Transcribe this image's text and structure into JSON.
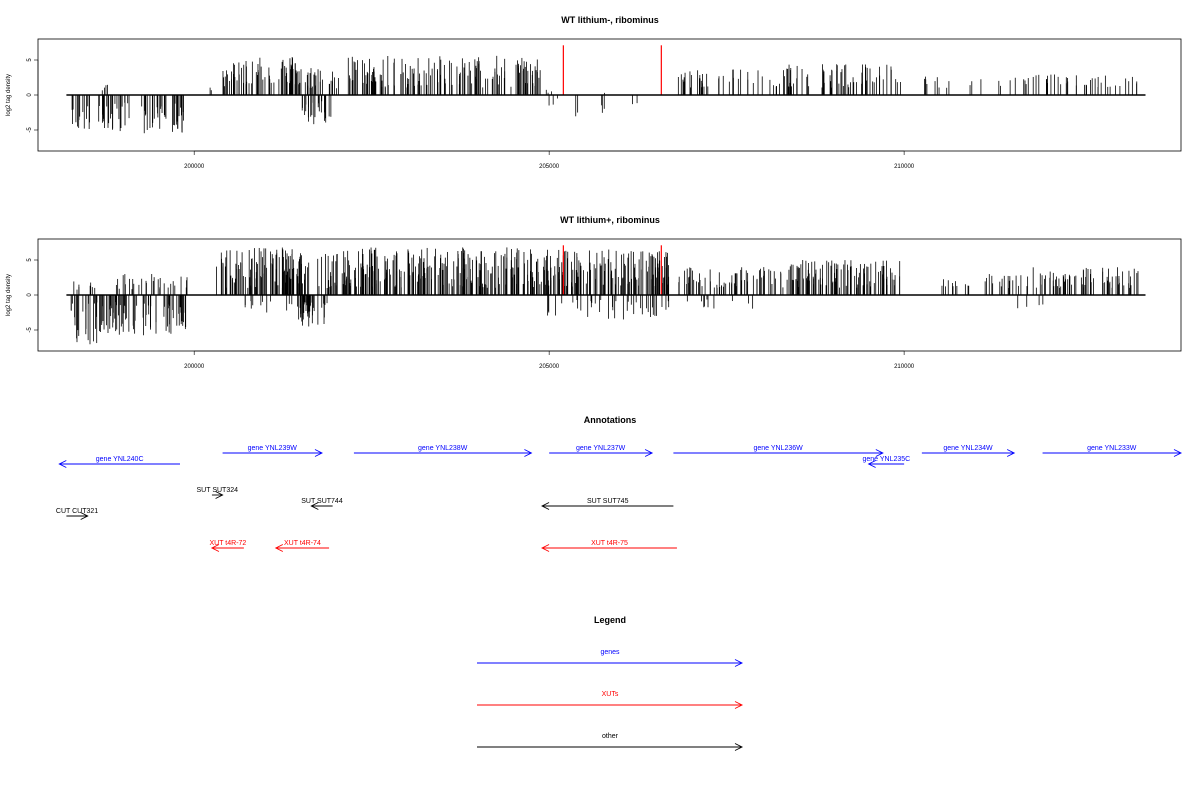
{
  "chart_data": [
    {
      "type": "bar",
      "title": "WT lithium-, ribominus",
      "xlabel": "",
      "ylabel": "log2 tag density",
      "xlim": [
        197800,
        213900
      ],
      "ylim": [
        -8,
        8
      ],
      "xticks": [
        200000,
        205000,
        210000
      ],
      "yticks": [
        -5,
        0,
        5
      ],
      "xticklabels": [
        "200000",
        "205000",
        "210000"
      ],
      "yticklabels": [
        "-5",
        "0",
        "5"
      ],
      "grid": false,
      "baseline_range": [
        198200,
        213400
      ],
      "bar_color": "#000000",
      "marker_color": "#ff0000",
      "markers": [
        205200,
        206580
      ],
      "marker_height": 7.1,
      "segments": [
        {
          "start": 198250,
          "end": 198600,
          "count": 14,
          "min": -5.0,
          "max": -1.0,
          "seed": 11
        },
        {
          "start": 198700,
          "end": 198850,
          "count": 4,
          "min": 0.5,
          "max": 2.0,
          "seed": 12
        },
        {
          "start": 198650,
          "end": 199850,
          "count": 60,
          "min": -5.5,
          "max": -1.0,
          "seed": 13
        },
        {
          "start": 200200,
          "end": 200300,
          "count": 2,
          "min": 0.5,
          "max": 1.5,
          "seed": 14
        },
        {
          "start": 200400,
          "end": 201500,
          "count": 70,
          "min": 1.0,
          "max": 5.5,
          "seed": 15
        },
        {
          "start": 201500,
          "end": 201950,
          "count": 24,
          "min": -4.2,
          "max": -0.8,
          "seed": 16
        },
        {
          "start": 201500,
          "end": 202100,
          "count": 26,
          "min": 0.8,
          "max": 4.5,
          "seed": 17
        },
        {
          "start": 202150,
          "end": 204900,
          "count": 150,
          "min": 1.0,
          "max": 5.6,
          "seed": 18
        },
        {
          "start": 204950,
          "end": 205150,
          "count": 6,
          "min": -1.5,
          "max": 1.2,
          "seed": 19
        },
        {
          "start": 205350,
          "end": 205450,
          "count": 2,
          "min": -3.2,
          "max": -1.5,
          "seed": 20
        },
        {
          "start": 205700,
          "end": 205900,
          "count": 5,
          "min": -3.3,
          "max": 0.8,
          "seed": 21
        },
        {
          "start": 206150,
          "end": 206250,
          "count": 2,
          "min": -1.5,
          "max": -0.8,
          "seed": 22
        },
        {
          "start": 206800,
          "end": 208200,
          "count": 38,
          "min": 1.0,
          "max": 3.8,
          "seed": 23
        },
        {
          "start": 208200,
          "end": 209950,
          "count": 70,
          "min": 1.0,
          "max": 4.5,
          "seed": 24
        },
        {
          "start": 210250,
          "end": 211800,
          "count": 20,
          "min": 1.0,
          "max": 2.8,
          "seed": 25
        },
        {
          "start": 211800,
          "end": 213300,
          "count": 36,
          "min": 1.0,
          "max": 3.5,
          "seed": 26
        }
      ]
    },
    {
      "type": "bar",
      "title": "WT lithium+, ribominus",
      "xlabel": "",
      "ylabel": "log2 tag density",
      "xlim": [
        197800,
        213900
      ],
      "ylim": [
        -8,
        8
      ],
      "xticks": [
        200000,
        205000,
        210000
      ],
      "yticks": [
        -5,
        0,
        5
      ],
      "xticklabels": [
        "200000",
        "205000",
        "210000"
      ],
      "yticklabels": [
        "-5",
        "0",
        "5"
      ],
      "grid": false,
      "baseline_range": [
        198200,
        213400
      ],
      "bar_color": "#000000",
      "marker_color": "#ff0000",
      "markers": [
        205200,
        206580
      ],
      "marker_height": 7.1,
      "segments": [
        {
          "start": 198250,
          "end": 198650,
          "count": 22,
          "min": -7.3,
          "max": -1.0,
          "seed": 31
        },
        {
          "start": 198250,
          "end": 198650,
          "count": 8,
          "min": 0.5,
          "max": 2.0,
          "seed": 32
        },
        {
          "start": 198650,
          "end": 199950,
          "count": 80,
          "min": -5.8,
          "max": -1.0,
          "seed": 33
        },
        {
          "start": 198900,
          "end": 199900,
          "count": 30,
          "min": 0.8,
          "max": 3.0,
          "seed": 34
        },
        {
          "start": 200300,
          "end": 201500,
          "count": 100,
          "min": 1.0,
          "max": 7.0,
          "seed": 35
        },
        {
          "start": 200600,
          "end": 201500,
          "count": 12,
          "min": -2.5,
          "max": -0.6,
          "seed": 36
        },
        {
          "start": 201450,
          "end": 201950,
          "count": 40,
          "min": -4.5,
          "max": -1.0,
          "seed": 37
        },
        {
          "start": 201450,
          "end": 202100,
          "count": 30,
          "min": 1.0,
          "max": 6.0,
          "seed": 38
        },
        {
          "start": 202100,
          "end": 204950,
          "count": 230,
          "min": 1.0,
          "max": 6.8,
          "seed": 39
        },
        {
          "start": 204950,
          "end": 206700,
          "count": 140,
          "min": 1.0,
          "max": 6.5,
          "seed": 40
        },
        {
          "start": 204950,
          "end": 206700,
          "count": 40,
          "min": -3.5,
          "max": -0.7,
          "seed": 41
        },
        {
          "start": 206800,
          "end": 208200,
          "count": 60,
          "min": 1.0,
          "max": 4.0,
          "seed": 42
        },
        {
          "start": 206900,
          "end": 208000,
          "count": 10,
          "min": -2.0,
          "max": -0.6,
          "seed": 43
        },
        {
          "start": 208200,
          "end": 209950,
          "count": 110,
          "min": 1.0,
          "max": 5.0,
          "seed": 44
        },
        {
          "start": 210300,
          "end": 211800,
          "count": 30,
          "min": 1.0,
          "max": 3.0,
          "seed": 45
        },
        {
          "start": 211800,
          "end": 213300,
          "count": 70,
          "min": 1.0,
          "max": 4.0,
          "seed": 46
        },
        {
          "start": 211600,
          "end": 212100,
          "count": 4,
          "min": -2.5,
          "max": -1.0,
          "seed": 47
        }
      ]
    }
  ],
  "annotations": {
    "title": "Annotations",
    "xlim": [
      197800,
      213900
    ],
    "features": [
      {
        "label": "gene YNL240C",
        "type": "gene",
        "strand": "-",
        "start": 198100,
        "end": 199800,
        "row": 1
      },
      {
        "label": "gene YNL239W",
        "type": "gene",
        "strand": "+",
        "start": 200400,
        "end": 201800,
        "row": 0
      },
      {
        "label": "gene YNL238W",
        "type": "gene",
        "strand": "+",
        "start": 202250,
        "end": 204750,
        "row": 0
      },
      {
        "label": "gene YNL237W",
        "type": "gene",
        "strand": "+",
        "start": 205000,
        "end": 206450,
        "row": 0
      },
      {
        "label": "gene YNL236W",
        "type": "gene",
        "strand": "+",
        "start": 206750,
        "end": 209700,
        "row": 0
      },
      {
        "label": "gene YNL235C",
        "type": "gene",
        "strand": "-",
        "start": 209500,
        "end": 210000,
        "row": 1
      },
      {
        "label": "gene YNL234W",
        "type": "gene",
        "strand": "+",
        "start": 210250,
        "end": 211550,
        "row": 0
      },
      {
        "label": "gene YNL233W",
        "type": "gene",
        "strand": "+",
        "start": 211950,
        "end": 213900,
        "row": 0
      },
      {
        "label": "SUT SUT324",
        "type": "other",
        "strand": "+",
        "start": 200250,
        "end": 200400,
        "row": 3
      },
      {
        "label": "SUT SUT744",
        "type": "other",
        "strand": "-",
        "start": 201650,
        "end": 201950,
        "row": 4
      },
      {
        "label": "SUT SUT745",
        "type": "other",
        "strand": "-",
        "start": 204900,
        "end": 206750,
        "row": 4
      },
      {
        "label": "CUT CUT321",
        "type": "other",
        "strand": "+",
        "start": 198200,
        "end": 198500,
        "row": 5
      },
      {
        "label": "XUT t4R-72",
        "type": "xut",
        "strand": "-",
        "start": 200250,
        "end": 200700,
        "row": 7
      },
      {
        "label": "XUT t4R-74",
        "type": "xut",
        "strand": "-",
        "start": 201150,
        "end": 201900,
        "row": 7
      },
      {
        "label": "XUT t4R-75",
        "type": "xut",
        "strand": "-",
        "start": 204900,
        "end": 206800,
        "row": 7
      }
    ]
  },
  "legend": {
    "title": "Legend",
    "items": [
      {
        "label": "genes",
        "color": "#0000ff"
      },
      {
        "label": "XUTs",
        "color": "#ff0000"
      },
      {
        "label": "other",
        "color": "#000000"
      }
    ]
  },
  "colors": {
    "gene": "#0000ff",
    "xut": "#ff0000",
    "other": "#000000"
  }
}
